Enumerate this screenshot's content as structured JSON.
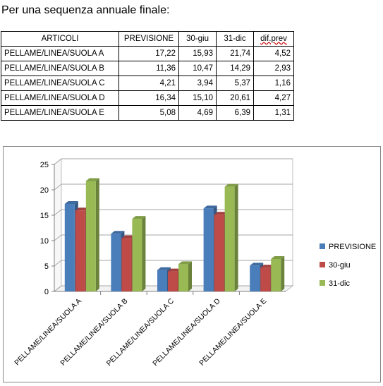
{
  "heading": "Per una sequenza annuale finale:",
  "table": {
    "headers": [
      "ARTICOLI",
      "PREVISIONE",
      "30-giu",
      "31-dic",
      "dif.prev"
    ],
    "rows": [
      [
        "PELLAME/LINEA/SUOLA A",
        "17,22",
        "15,93",
        "21,74",
        "4,52"
      ],
      [
        "PELLAME/LINEA/SUOLA B",
        "11,36",
        "10,47",
        "14,29",
        "2,93"
      ],
      [
        "PELLAME/LINEA/SUOLA C",
        "4,21",
        "3,94",
        "5,37",
        "1,16"
      ],
      [
        "PELLAME/LINEA/SUOLA D",
        "16,34",
        "15,10",
        "20,61",
        "4,27"
      ],
      [
        "PELLAME/LINEA/SUOLA E",
        "5,08",
        "4,69",
        "6,39",
        "1,31"
      ]
    ]
  },
  "chart_data": {
    "type": "bar",
    "categories": [
      "PELLAME/LINEA/SUOLA A",
      "PELLAME/LINEA/SUOLA B",
      "PELLAME/LINEA/SUOLA C",
      "PELLAME/LINEA/SUOLA D",
      "PELLAME/LINEA/SUOLA E"
    ],
    "series": [
      {
        "name": "PREVISIONE",
        "color": "#4a7ebb",
        "values": [
          17.22,
          11.36,
          4.21,
          16.34,
          5.08
        ]
      },
      {
        "name": "30-giu",
        "color": "#be4b48",
        "values": [
          15.93,
          10.47,
          3.94,
          15.1,
          4.69
        ]
      },
      {
        "name": "31-dic",
        "color": "#98b954",
        "values": [
          21.74,
          14.29,
          5.37,
          20.61,
          6.39
        ]
      }
    ],
    "ylim": [
      0,
      25
    ],
    "yticks": [
      0,
      5,
      10,
      15,
      20,
      25
    ],
    "grid": true,
    "legend_position": "right",
    "style": "3d-clustered-column"
  }
}
